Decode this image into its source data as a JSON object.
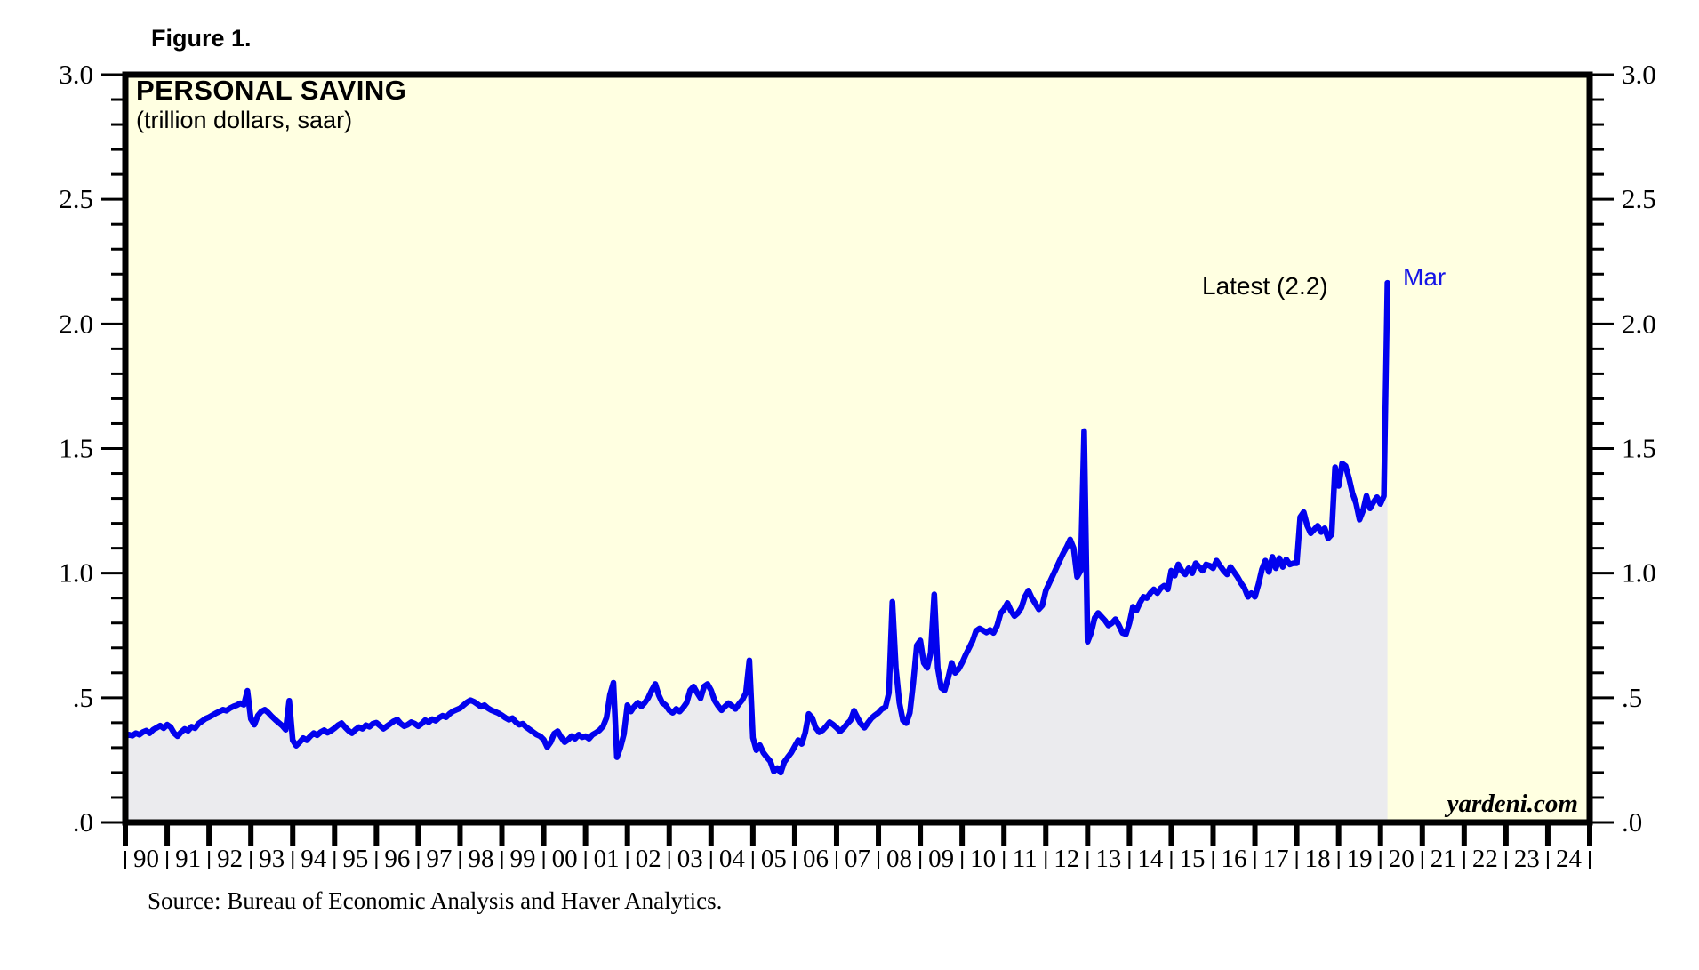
{
  "figure": {
    "label": "Figure 1."
  },
  "chart": {
    "title": "PERSONAL SAVING",
    "subtitle": "(trillion dollars, saar)",
    "annotation_latest": "Latest (2.2)",
    "annotation_month": "Mar",
    "watermark": "yardeni.com"
  },
  "footer": {
    "source": "Source: Bureau of Economic Analysis and Haver Analytics."
  },
  "colors": {
    "plot_bg": "#FFFFE1",
    "line": "#0202EE",
    "area_fill": "#EBEBEE",
    "axis": "#000000",
    "annotation_blue": "#1414E6",
    "text": "#000000"
  },
  "chart_data": {
    "type": "line",
    "title": "PERSONAL SAVING (trillion dollars, saar)",
    "legend": "none",
    "grid": false,
    "y_axis": {
      "min": 0,
      "max": 3,
      "major_step": 0.5,
      "minor_step": 0.1,
      "major_labels_top_to_bottom": [
        "3.0",
        "2.5",
        "2.0",
        "1.5",
        "1.0",
        ".5",
        ".0"
      ],
      "labels_on_both_sides": true
    },
    "x_axis": {
      "start_year": 1990,
      "end_year": 2025,
      "tick_interval_years": 1,
      "labels": [
        "90",
        "91",
        "92",
        "93",
        "94",
        "95",
        "96",
        "97",
        "98",
        "99",
        "00",
        "01",
        "02",
        "03",
        "04",
        "05",
        "06",
        "07",
        "08",
        "09",
        "10",
        "11",
        "12",
        "13",
        "14",
        "15",
        "16",
        "17",
        "18",
        "19",
        "20",
        "21",
        "22",
        "23",
        "24"
      ]
    },
    "latest": {
      "label": "Mar",
      "value": 2.2,
      "date": "Mar 2020"
    },
    "series": [
      {
        "name": "Personal Saving",
        "unit": "trillion dollars, saar",
        "frequency": "monthly",
        "start": "1990-01",
        "end": "2020-03",
        "values": [
          0.345,
          0.352,
          0.348,
          0.358,
          0.352,
          0.362,
          0.368,
          0.358,
          0.372,
          0.38,
          0.388,
          0.378,
          0.392,
          0.382,
          0.358,
          0.346,
          0.362,
          0.375,
          0.368,
          0.384,
          0.378,
          0.396,
          0.406,
          0.416,
          0.422,
          0.43,
          0.438,
          0.445,
          0.452,
          0.448,
          0.458,
          0.465,
          0.47,
          0.478,
          0.472,
          0.528,
          0.415,
          0.392,
          0.428,
          0.445,
          0.452,
          0.44,
          0.425,
          0.412,
          0.4,
          0.388,
          0.372,
          0.488,
          0.33,
          0.308,
          0.322,
          0.338,
          0.33,
          0.345,
          0.358,
          0.35,
          0.362,
          0.37,
          0.36,
          0.368,
          0.378,
          0.39,
          0.398,
          0.382,
          0.368,
          0.358,
          0.372,
          0.382,
          0.376,
          0.39,
          0.384,
          0.396,
          0.4,
          0.388,
          0.376,
          0.386,
          0.396,
          0.406,
          0.412,
          0.396,
          0.386,
          0.392,
          0.402,
          0.396,
          0.386,
          0.396,
          0.41,
          0.402,
          0.414,
          0.408,
          0.42,
          0.428,
          0.422,
          0.436,
          0.446,
          0.452,
          0.458,
          0.47,
          0.482,
          0.49,
          0.484,
          0.474,
          0.464,
          0.47,
          0.458,
          0.45,
          0.444,
          0.438,
          0.43,
          0.42,
          0.412,
          0.418,
          0.402,
          0.392,
          0.396,
          0.382,
          0.372,
          0.362,
          0.352,
          0.346,
          0.332,
          0.302,
          0.322,
          0.356,
          0.366,
          0.342,
          0.322,
          0.332,
          0.346,
          0.336,
          0.352,
          0.342,
          0.346,
          0.336,
          0.352,
          0.36,
          0.37,
          0.385,
          0.42,
          0.512,
          0.56,
          0.262,
          0.3,
          0.355,
          0.47,
          0.445,
          0.465,
          0.48,
          0.465,
          0.48,
          0.5,
          0.53,
          0.555,
          0.51,
          0.48,
          0.47,
          0.45,
          0.44,
          0.455,
          0.445,
          0.46,
          0.48,
          0.53,
          0.545,
          0.52,
          0.498,
          0.545,
          0.555,
          0.53,
          0.49,
          0.468,
          0.45,
          0.465,
          0.478,
          0.468,
          0.455,
          0.475,
          0.492,
          0.52,
          0.65,
          0.34,
          0.29,
          0.31,
          0.28,
          0.262,
          0.245,
          0.205,
          0.218,
          0.2,
          0.242,
          0.262,
          0.28,
          0.305,
          0.33,
          0.315,
          0.36,
          0.435,
          0.42,
          0.38,
          0.362,
          0.37,
          0.385,
          0.402,
          0.392,
          0.38,
          0.365,
          0.378,
          0.395,
          0.41,
          0.448,
          0.42,
          0.395,
          0.38,
          0.4,
          0.418,
          0.43,
          0.44,
          0.455,
          0.462,
          0.52,
          0.885,
          0.62,
          0.48,
          0.41,
          0.398,
          0.44,
          0.56,
          0.71,
          0.73,
          0.64,
          0.62,
          0.68,
          0.915,
          0.62,
          0.54,
          0.53,
          0.58,
          0.64,
          0.6,
          0.615,
          0.64,
          0.672,
          0.7,
          0.728,
          0.768,
          0.778,
          0.77,
          0.762,
          0.772,
          0.76,
          0.788,
          0.838,
          0.855,
          0.88,
          0.85,
          0.828,
          0.84,
          0.862,
          0.905,
          0.93,
          0.9,
          0.878,
          0.855,
          0.87,
          0.93,
          0.96,
          0.99,
          1.02,
          1.05,
          1.08,
          1.105,
          1.135,
          1.1,
          0.985,
          1.01,
          1.57,
          0.725,
          0.76,
          0.82,
          0.84,
          0.825,
          0.81,
          0.79,
          0.8,
          0.815,
          0.79,
          0.76,
          0.755,
          0.8,
          0.865,
          0.85,
          0.88,
          0.905,
          0.9,
          0.92,
          0.935,
          0.92,
          0.94,
          0.95,
          0.935,
          1.01,
          0.99,
          1.035,
          1.01,
          0.995,
          1.02,
          1.0,
          1.04,
          1.025,
          1.01,
          1.035,
          1.03,
          1.02,
          1.05,
          1.03,
          1.01,
          0.995,
          1.025,
          1.005,
          0.985,
          0.96,
          0.94,
          0.905,
          0.92,
          0.905,
          0.955,
          1.015,
          1.05,
          1.005,
          1.065,
          1.02,
          1.06,
          1.025,
          1.055,
          1.035,
          1.04,
          1.04,
          1.225,
          1.245,
          1.19,
          1.16,
          1.175,
          1.19,
          1.165,
          1.18,
          1.14,
          1.155,
          1.425,
          1.35,
          1.44,
          1.43,
          1.38,
          1.32,
          1.28,
          1.215,
          1.25,
          1.31,
          1.26,
          1.285,
          1.305,
          1.278,
          1.31,
          2.165
        ]
      }
    ]
  }
}
